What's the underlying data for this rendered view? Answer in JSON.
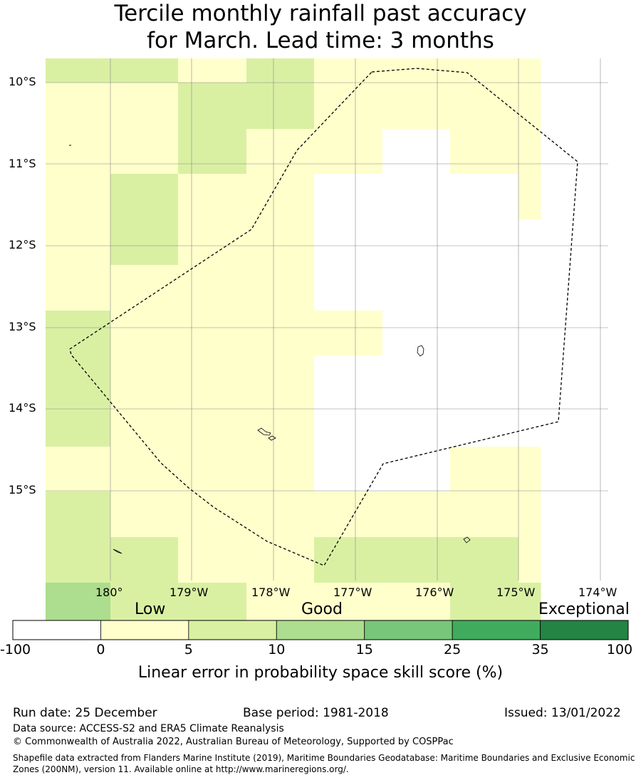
{
  "title": {
    "line1": "Tercile monthly rainfall past accuracy",
    "line2": "for March. Lead time: 3 months"
  },
  "map": {
    "lat_labels": [
      "10°S",
      "11°S",
      "12°S",
      "13°S",
      "14°S",
      "15°S"
    ],
    "lon_labels": [
      "180°",
      "179°W",
      "178°W",
      "177°W",
      "176°W",
      "175°W",
      "174°W"
    ],
    "grid_color": "#888888",
    "boundary_style": "dashed",
    "cells": [
      [
        2,
        2,
        1,
        2,
        1,
        1,
        1,
        1
      ],
      [
        1,
        1,
        2,
        2,
        1,
        1,
        1,
        1
      ],
      [
        1,
        1,
        2,
        1,
        1,
        0,
        1,
        1
      ],
      [
        1,
        2,
        1,
        1,
        0,
        0,
        0,
        1
      ],
      [
        1,
        2,
        1,
        1,
        0,
        0,
        0,
        0
      ],
      [
        1,
        1,
        1,
        1,
        0,
        0,
        0,
        0
      ],
      [
        2,
        1,
        1,
        1,
        1,
        0,
        0,
        0
      ],
      [
        2,
        1,
        1,
        1,
        0,
        0,
        0,
        0
      ],
      [
        2,
        1,
        1,
        1,
        0,
        0,
        0,
        0
      ],
      [
        1,
        1,
        1,
        1,
        0,
        0,
        1,
        1
      ],
      [
        2,
        1,
        1,
        1,
        1,
        1,
        1,
        1
      ],
      [
        2,
        2,
        1,
        1,
        2,
        2,
        2,
        1
      ],
      [
        3,
        2,
        2,
        1,
        1,
        1,
        2,
        2
      ]
    ]
  },
  "categories": {
    "low": "Low",
    "good": "Good",
    "exceptional": "Exceptional"
  },
  "colorbar": {
    "ticks": [
      "-100",
      "0",
      "5",
      "10",
      "15",
      "25",
      "35",
      "100"
    ],
    "colors": [
      "#ffffff",
      "#ffffcc",
      "#d9f0a3",
      "#addd8e",
      "#78c679",
      "#41ab5d",
      "#238443"
    ],
    "label": "Linear error in probability space skill score (%)"
  },
  "footer": {
    "run_date": "Run date: 25 December",
    "base_period": "Base period: 1981-2018",
    "issued": "Issued: 13/01/2022",
    "data_source": "Data source: ACCESS-S2 and ERA5 Climate Reanalysis",
    "copyright": "© Commonwealth of Australia 2022, Australian Bureau of Meteorology, Supported by COSPPac",
    "shapefile_line1": "Shapefile data extracted from Flanders Marine Institute (2019), Maritime Boundaries Geodatabase: Maritime Boundaries and Exclusive Economic",
    "shapefile_line2": "Zones (200NM), version 11. Available online at http://www.marineregions.org/."
  }
}
